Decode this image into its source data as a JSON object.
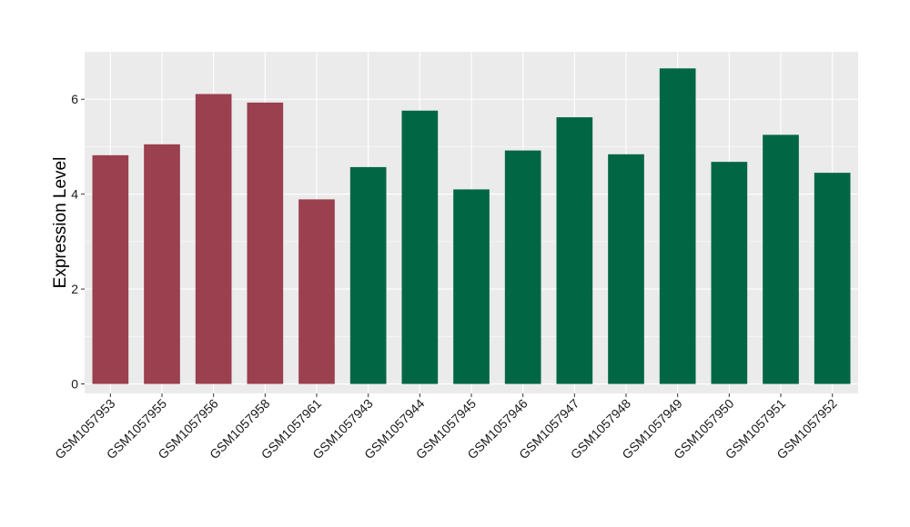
{
  "chart_data": {
    "type": "bar",
    "title": "",
    "xlabel": "",
    "ylabel": "Expression Level",
    "ylim": [
      -0.2,
      7.0
    ],
    "y_ticks": [
      0,
      2,
      4,
      6
    ],
    "grid": true,
    "legend": "none",
    "categories": [
      "GSM1057953",
      "GSM1057955",
      "GSM1057956",
      "GSM1057958",
      "GSM1057961",
      "GSM1057943",
      "GSM1057944",
      "GSM1057945",
      "GSM1057946",
      "GSM1057947",
      "GSM1057948",
      "GSM1057949",
      "GSM1057950",
      "GSM1057951",
      "GSM1057952"
    ],
    "values": [
      4.82,
      5.05,
      6.11,
      5.93,
      3.89,
      4.57,
      5.76,
      4.1,
      4.92,
      5.62,
      4.84,
      6.65,
      4.68,
      5.25,
      4.45
    ],
    "groups": [
      0,
      0,
      0,
      0,
      0,
      1,
      1,
      1,
      1,
      1,
      1,
      1,
      1,
      1,
      1
    ],
    "group_colors": [
      "#9a404f",
      "#006644"
    ],
    "panel_color": "#ebebeb",
    "grid_color": "#ffffff"
  }
}
